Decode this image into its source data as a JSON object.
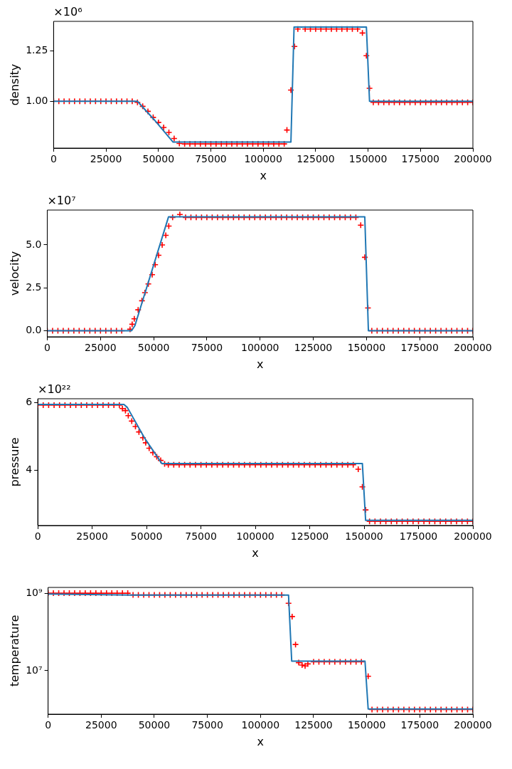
{
  "chart_data": [
    {
      "type": "line",
      "xlabel": "x",
      "ylabel": "density",
      "annotations": [
        "×10⁶"
      ],
      "xlim": [
        0,
        200000
      ],
      "xticks": [
        0,
        25000,
        50000,
        75000,
        100000,
        125000,
        150000,
        175000,
        200000
      ],
      "ylim": [
        0.767,
        1.398
      ],
      "yticks": [
        {
          "value": 1,
          "label": "1.00"
        },
        {
          "value": 1.25,
          "label": "1.25"
        }
      ],
      "grid": false,
      "series": [
        {
          "type": "line",
          "color": "#1f77b4",
          "x": [
            0,
            40000,
            48000,
            57000,
            113200,
            114700,
            149200,
            150700,
            200000
          ],
          "values": [
            1,
            1,
            0.908,
            0.797,
            0.797,
            1.37,
            1.37,
            1,
            1
          ]
        },
        {
          "type": "scatter",
          "marker": "cross",
          "color": "#ff0000",
          "x": [
            0,
            2500,
            5000,
            7500,
            10000,
            12500,
            15000,
            17500,
            20000,
            22500,
            25000,
            27500,
            30000,
            32500,
            35000,
            37500,
            40000,
            42500,
            45000,
            47500,
            50000,
            52500,
            55000,
            57500,
            60000,
            62500,
            65000,
            67500,
            70000,
            72500,
            75000,
            77500,
            80000,
            82500,
            85000,
            87500,
            90000,
            92500,
            95000,
            97500,
            100000,
            102500,
            105000,
            107500,
            110000,
            111300,
            113200,
            114900,
            116500,
            120000,
            122500,
            125000,
            127500,
            130000,
            132500,
            135000,
            137500,
            140000,
            142500,
            145000,
            147300,
            149200,
            150700,
            152500,
            155000,
            157500,
            160000,
            162500,
            165000,
            167500,
            170000,
            172500,
            175000,
            177500,
            180000,
            182500,
            185000,
            187500,
            190000,
            192500,
            195000,
            197500,
            200000
          ],
          "values": [
            1,
            1,
            1,
            1,
            1,
            1,
            1,
            1,
            1,
            1,
            1,
            1,
            1,
            1,
            1,
            1,
            0.995,
            0.975,
            0.95,
            0.92,
            0.895,
            0.87,
            0.845,
            0.815,
            0.79,
            0.788,
            0.788,
            0.788,
            0.788,
            0.788,
            0.788,
            0.788,
            0.788,
            0.788,
            0.788,
            0.788,
            0.788,
            0.788,
            0.788,
            0.788,
            0.788,
            0.788,
            0.788,
            0.788,
            0.788,
            0.857,
            1.056,
            1.273,
            1.36,
            1.36,
            1.36,
            1.36,
            1.36,
            1.36,
            1.36,
            1.36,
            1.36,
            1.36,
            1.36,
            1.36,
            1.34,
            1.227,
            1.065,
            0.995,
            0.995,
            0.995,
            0.995,
            0.995,
            0.995,
            0.995,
            0.995,
            0.995,
            0.995,
            0.995,
            0.995,
            0.995,
            0.995,
            0.995,
            0.995,
            0.995,
            0.995,
            0.995,
            0.995
          ]
        }
      ]
    },
    {
      "type": "line",
      "xlabel": "x",
      "ylabel": "velocity",
      "annotations": [
        "×10⁷"
      ],
      "xlim": [
        0,
        200000
      ],
      "xticks": [
        0,
        25000,
        50000,
        75000,
        100000,
        125000,
        150000,
        175000,
        200000
      ],
      "ylim": [
        -0.35,
        7.03
      ],
      "yticks": [
        {
          "value": 0,
          "label": "0.0"
        },
        {
          "value": 2.5,
          "label": "2.5"
        },
        {
          "value": 5,
          "label": "5.0"
        }
      ],
      "grid": false,
      "series": [
        {
          "type": "line",
          "color": "#1f77b4",
          "x": [
            0,
            39600,
            41200,
            57000,
            149200,
            150900,
            200000
          ],
          "values": [
            0,
            0,
            0.3,
            6.64,
            6.64,
            0,
            0
          ]
        },
        {
          "type": "scatter",
          "marker": "cross",
          "color": "#ff0000",
          "x": [
            0,
            2500,
            5000,
            7500,
            10000,
            12500,
            15000,
            17500,
            20000,
            22500,
            25000,
            27500,
            30000,
            32500,
            35000,
            38900,
            39900,
            40900,
            42700,
            44500,
            45900,
            47500,
            49300,
            50700,
            52300,
            54000,
            55700,
            57100,
            58900,
            62300,
            65000,
            67500,
            70000,
            72500,
            75000,
            77500,
            80000,
            82500,
            85000,
            87500,
            90000,
            92500,
            95000,
            97500,
            100000,
            102500,
            105000,
            107500,
            110000,
            112500,
            115000,
            117500,
            120000,
            122500,
            125000,
            127500,
            130000,
            132500,
            135000,
            137500,
            140000,
            142500,
            145000,
            147300,
            149200,
            150700,
            152500,
            155000,
            157500,
            160000,
            162500,
            165000,
            167500,
            170000,
            172500,
            175000,
            177500,
            180000,
            182500,
            185000,
            187500,
            190000,
            192500,
            195000,
            197500,
            200000
          ],
          "values": [
            0,
            0,
            0,
            0,
            0,
            0,
            0,
            0,
            0,
            0,
            0,
            0,
            0,
            0,
            0,
            0.09,
            0.38,
            0.7,
            1.22,
            1.75,
            2.22,
            2.73,
            3.27,
            3.85,
            4.4,
            5,
            5.56,
            6.1,
            6.6,
            6.77,
            6.6,
            6.6,
            6.6,
            6.6,
            6.6,
            6.6,
            6.6,
            6.6,
            6.6,
            6.6,
            6.6,
            6.6,
            6.6,
            6.6,
            6.6,
            6.6,
            6.6,
            6.6,
            6.6,
            6.6,
            6.6,
            6.6,
            6.6,
            6.6,
            6.6,
            6.6,
            6.6,
            6.6,
            6.6,
            6.6,
            6.6,
            6.6,
            6.6,
            6.15,
            4.28,
            1.33,
            0,
            0,
            0,
            0,
            0,
            0,
            0,
            0,
            0,
            0,
            0,
            0,
            0,
            0,
            0,
            0,
            0,
            0,
            0,
            0
          ]
        }
      ]
    },
    {
      "type": "line",
      "xlabel": "x",
      "ylabel": "pressure",
      "annotations": [
        "×10²²"
      ],
      "xlim": [
        0,
        200000
      ],
      "xticks": [
        0,
        25000,
        50000,
        75000,
        100000,
        125000,
        150000,
        175000,
        200000
      ],
      "ylim": [
        2.37,
        6.11
      ],
      "yticks": [
        {
          "value": 4,
          "label": "4"
        },
        {
          "value": 6,
          "label": "6"
        }
      ],
      "grid": false,
      "series": [
        {
          "type": "line",
          "color": "#1f77b4",
          "x": [
            0,
            39600,
            41200,
            49000,
            57000,
            149200,
            150700,
            200000
          ],
          "values": [
            5.94,
            5.94,
            5.85,
            4.96,
            4.2,
            4.2,
            2.52,
            2.52
          ]
        },
        {
          "type": "scatter",
          "marker": "cross",
          "color": "#ff0000",
          "x": [
            0,
            2500,
            5000,
            7500,
            10000,
            12500,
            15000,
            17500,
            20000,
            22500,
            25000,
            27500,
            30000,
            32500,
            35000,
            37500,
            38900,
            40300,
            41600,
            43200,
            44900,
            46500,
            48300,
            49600,
            51200,
            52900,
            54700,
            56500,
            58300,
            60000,
            62500,
            65000,
            67500,
            70000,
            72500,
            75000,
            77500,
            80000,
            82500,
            85000,
            87500,
            90000,
            92500,
            95000,
            97500,
            100000,
            102500,
            105000,
            107500,
            110000,
            112500,
            115000,
            117500,
            120000,
            122500,
            125000,
            127500,
            130000,
            132500,
            135000,
            137500,
            140000,
            142500,
            145000,
            147300,
            149200,
            150700,
            152500,
            155000,
            157500,
            160000,
            162500,
            165000,
            167500,
            170000,
            172500,
            175000,
            177500,
            180000,
            182500,
            185000,
            187500,
            190000,
            192500,
            195000,
            197500,
            200000
          ],
          "values": [
            5.92,
            5.92,
            5.92,
            5.92,
            5.92,
            5.92,
            5.92,
            5.92,
            5.92,
            5.92,
            5.92,
            5.92,
            5.92,
            5.92,
            5.92,
            5.92,
            5.82,
            5.76,
            5.61,
            5.45,
            5.29,
            5.13,
            4.96,
            4.81,
            4.65,
            4.52,
            4.4,
            4.29,
            4.19,
            4.16,
            4.16,
            4.16,
            4.16,
            4.16,
            4.16,
            4.16,
            4.16,
            4.16,
            4.16,
            4.16,
            4.16,
            4.16,
            4.16,
            4.16,
            4.16,
            4.16,
            4.16,
            4.16,
            4.16,
            4.16,
            4.16,
            4.16,
            4.16,
            4.16,
            4.16,
            4.16,
            4.16,
            4.16,
            4.16,
            4.16,
            4.16,
            4.16,
            4.16,
            4.16,
            4.03,
            3.51,
            2.83,
            2.49,
            2.49,
            2.49,
            2.49,
            2.49,
            2.49,
            2.49,
            2.49,
            2.49,
            2.49,
            2.49,
            2.49,
            2.49,
            2.49,
            2.49,
            2.49,
            2.49,
            2.49,
            2.49,
            2.49
          ]
        }
      ]
    },
    {
      "type": "line",
      "xlabel": "x",
      "ylabel": "temperature",
      "log": "y",
      "xlim": [
        0,
        200000
      ],
      "xticks": [
        0,
        25000,
        50000,
        75000,
        100000,
        125000,
        150000,
        175000,
        200000
      ],
      "ylim": [
        757000,
        1410000000
      ],
      "yticks": [
        {
          "value": 10000000,
          "label": "10⁷"
        },
        {
          "value": 1000000000,
          "label": "10⁹"
        }
      ],
      "grid": false,
      "series": [
        {
          "type": "line",
          "color": "#1f77b4",
          "x": [
            0,
            40000,
            113200,
            114700,
            149200,
            150700,
            200000
          ],
          "values": [
            950000000,
            898000000,
            898000000,
            17700000,
            17700000,
            1030000,
            1030000
          ]
        },
        {
          "type": "scatter",
          "marker": "cross",
          "color": "#ff0000",
          "x": [
            0,
            2500,
            5000,
            7500,
            10000,
            12500,
            15000,
            17500,
            20000,
            22500,
            25000,
            27500,
            30000,
            32500,
            35000,
            37500,
            40000,
            42500,
            45000,
            47500,
            50000,
            52500,
            55000,
            57500,
            60000,
            62500,
            65000,
            67500,
            70000,
            72500,
            75000,
            77500,
            80000,
            82500,
            85000,
            87500,
            90000,
            92500,
            95000,
            97500,
            100000,
            102500,
            105000,
            107500,
            110000,
            113200,
            114900,
            116500,
            118000,
            119600,
            121000,
            122300,
            125000,
            127500,
            130000,
            132500,
            135000,
            137500,
            140000,
            142500,
            145000,
            147500,
            150700,
            152500,
            155000,
            157500,
            160000,
            162500,
            165000,
            167500,
            170000,
            172500,
            175000,
            177500,
            180000,
            182500,
            185000,
            187500,
            190000,
            192500,
            195000,
            197500,
            200000
          ],
          "values": [
            1000000000,
            1000000000,
            1000000000,
            1000000000,
            1000000000,
            1000000000,
            1000000000,
            1000000000,
            1000000000,
            1000000000,
            1000000000,
            1000000000,
            1000000000,
            1000000000,
            1000000000,
            1000000000,
            900000000,
            900000000,
            900000000,
            900000000,
            900000000,
            900000000,
            900000000,
            900000000,
            900000000,
            900000000,
            900000000,
            900000000,
            900000000,
            900000000,
            900000000,
            900000000,
            900000000,
            900000000,
            900000000,
            900000000,
            900000000,
            900000000,
            900000000,
            900000000,
            900000000,
            900000000,
            900000000,
            900000000,
            900000000,
            550000000,
            250000000,
            47500000,
            16200000,
            14000000,
            13300000,
            15000000,
            17000000,
            17000000,
            17000000,
            17000000,
            17000000,
            17000000,
            17000000,
            17000000,
            17000000,
            17000000,
            7200000,
            1000000,
            1000000,
            1000000,
            1000000,
            1000000,
            1000000,
            1000000,
            1000000,
            1000000,
            1000000,
            1000000,
            1000000,
            1000000,
            1000000,
            1000000,
            1000000,
            1000000,
            1000000,
            1000000,
            1000000
          ]
        }
      ]
    }
  ]
}
